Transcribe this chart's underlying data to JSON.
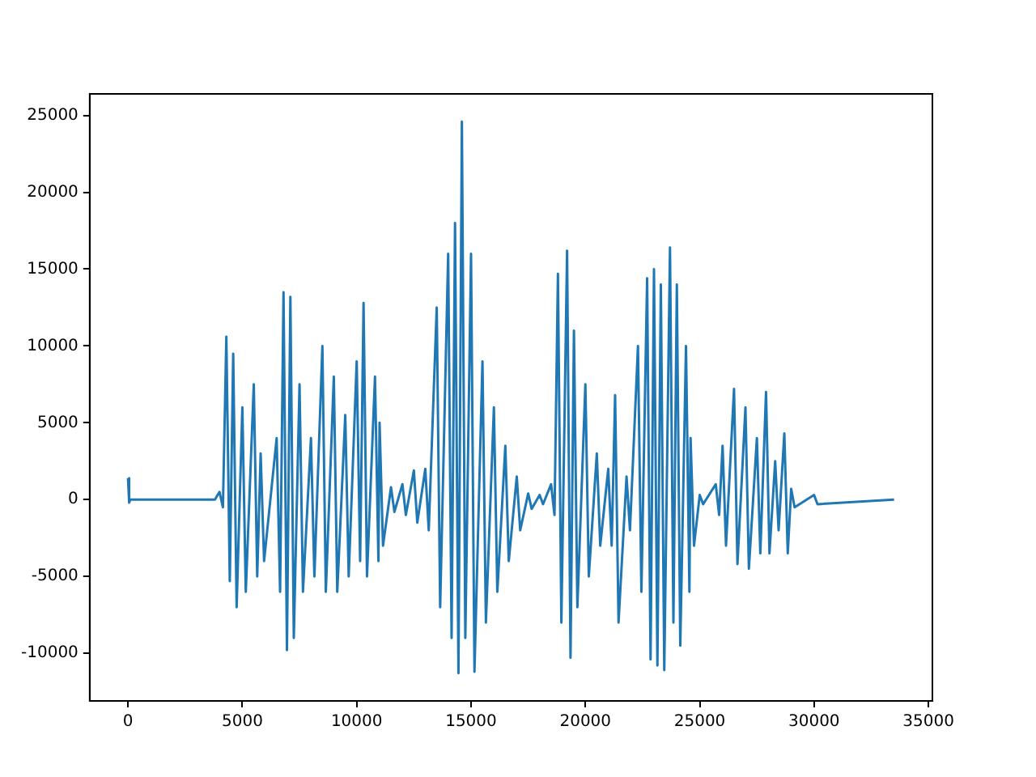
{
  "chart_data": {
    "type": "line",
    "x": [
      0,
      50,
      100,
      3800,
      4000,
      4150,
      4300,
      4450,
      4600,
      4750,
      5000,
      5150,
      5500,
      5650,
      5800,
      5950,
      6500,
      6650,
      6800,
      6950,
      7100,
      7250,
      7500,
      7650,
      8000,
      8150,
      8500,
      8650,
      9000,
      9150,
      9500,
      9650,
      10000,
      10150,
      10300,
      10450,
      10800,
      10950,
      11000,
      11150,
      11500,
      11650,
      12000,
      12150,
      12500,
      12650,
      13000,
      13150,
      13500,
      13650,
      14000,
      14150,
      14300,
      14450,
      14600,
      14750,
      15000,
      15150,
      15500,
      15650,
      16000,
      16150,
      16500,
      16650,
      17000,
      17150,
      17500,
      17650,
      18000,
      18150,
      18500,
      18650,
      18800,
      18950,
      19200,
      19350,
      19500,
      19650,
      20000,
      20150,
      20500,
      20650,
      21000,
      21150,
      21300,
      21450,
      21800,
      21950,
      22300,
      22450,
      22700,
      22850,
      23000,
      23150,
      23300,
      23450,
      23700,
      23850,
      24000,
      24150,
      24400,
      24550,
      24600,
      24750,
      25000,
      25150,
      25700,
      25850,
      26000,
      26150,
      26500,
      26650,
      27000,
      27150,
      27500,
      27650,
      27900,
      28050,
      28300,
      28450,
      28700,
      28850,
      29000,
      29150,
      30000,
      30150,
      33500
    ],
    "series": [
      {
        "color": "#1f77b4",
        "values": [
          1400,
          -200,
          0,
          0,
          500,
          -500,
          10600,
          -5300,
          9500,
          -7000,
          6000,
          -6000,
          7500,
          -5000,
          3000,
          -4000,
          4000,
          -6000,
          13500,
          -9800,
          13200,
          -9000,
          7500,
          -6000,
          4000,
          -5000,
          10000,
          -6000,
          8000,
          -6000,
          5500,
          -5000,
          9000,
          -4000,
          12800,
          -5000,
          8000,
          -4000,
          5000,
          -3000,
          800,
          -800,
          1000,
          -1000,
          1900,
          -1500,
          2000,
          -2000,
          12500,
          -7000,
          16000,
          -9000,
          18000,
          -11300,
          24600,
          -9000,
          16000,
          -11200,
          9000,
          -8000,
          6000,
          -6000,
          3500,
          -4000,
          1500,
          -2000,
          400,
          -600,
          300,
          -300,
          1000,
          -1000,
          14700,
          -8000,
          16200,
          -10300,
          11000,
          -7000,
          7500,
          -5000,
          3000,
          -3000,
          2000,
          -3000,
          6800,
          -8000,
          1500,
          -2000,
          10000,
          -6000,
          14400,
          -10400,
          15000,
          -10800,
          14000,
          -11100,
          16400,
          -8000,
          14000,
          -9500,
          10000,
          -6000,
          4000,
          -3000,
          300,
          -300,
          1000,
          -1000,
          3500,
          -3000,
          7200,
          -4200,
          6000,
          -4500,
          4000,
          -3500,
          7000,
          -3500,
          2500,
          -2000,
          4300,
          -3500,
          700,
          -500,
          300,
          -300,
          0
        ]
      }
    ],
    "xlim": [
      -1675,
      35175
    ],
    "xticks": [
      0,
      5000,
      10000,
      15000,
      20000,
      25000,
      30000,
      35000
    ],
    "ylim": [
      -13100,
      26400
    ],
    "yticks": [
      -10000,
      -5000,
      0,
      5000,
      10000,
      15000,
      20000,
      25000
    ],
    "grid": false,
    "legend": false
  }
}
